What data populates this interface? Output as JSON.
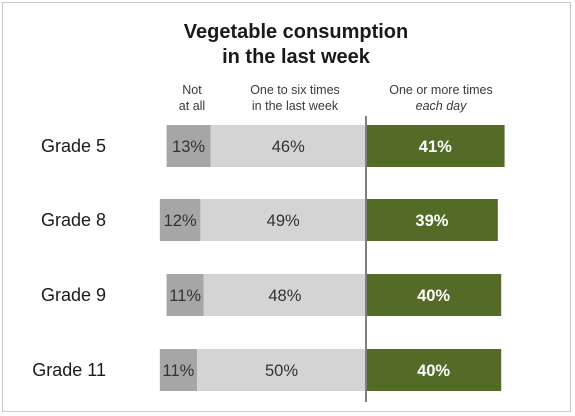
{
  "chart_data": {
    "type": "bar",
    "stacking": "diverging",
    "title_line1": "Vegetable consumption",
    "title_line2": "in the last week",
    "categories": [
      "Grade 5",
      "Grade 8",
      "Grade 9",
      "Grade 11"
    ],
    "series": [
      {
        "name": "Not at all",
        "header_lines": [
          "Not",
          "at all"
        ],
        "values": [
          13,
          12,
          11,
          11
        ],
        "labels": [
          "13%",
          "12%",
          "11%",
          "11%"
        ],
        "color": "#a6a6a6"
      },
      {
        "name": "One to six times in the last week",
        "header_lines": [
          "One to six times",
          "in the last week"
        ],
        "values": [
          46,
          49,
          48,
          50
        ],
        "labels": [
          "46%",
          "49%",
          "48%",
          "50%"
        ],
        "color": "#d4d4d4"
      },
      {
        "name": "One or more times each day",
        "header_lines": [
          "One or more times",
          "each day"
        ],
        "values": [
          41,
          39,
          40,
          40
        ],
        "labels": [
          "41%",
          "39%",
          "40%",
          "40%"
        ],
        "color": "#536b27"
      }
    ],
    "divider_color": "#7f7f7f",
    "legend": "top"
  }
}
